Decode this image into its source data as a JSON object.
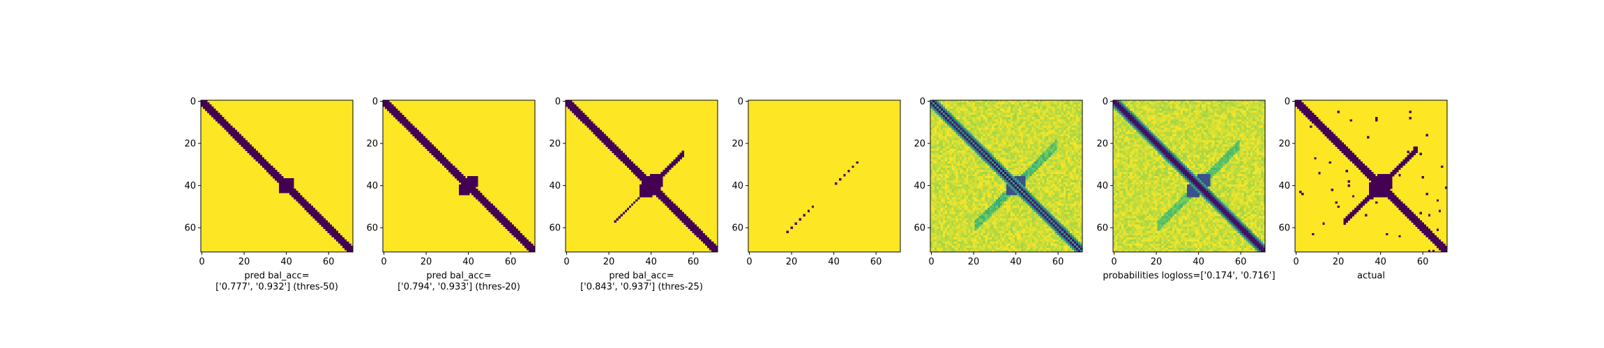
{
  "colors": {
    "low": "#440154",
    "high": "#fde725"
  },
  "chart_data": [
    {
      "type": "heatmap",
      "kind": "binary",
      "variant": "pred50",
      "xlabel": "pred bal_acc=\n['0.777', '0.932'] (thres-50)",
      "xlim": [
        0,
        72
      ],
      "ylim": [
        72,
        0
      ],
      "xticks": [
        0,
        20,
        40,
        60
      ],
      "yticks": [
        0,
        20,
        40,
        60
      ]
    },
    {
      "type": "heatmap",
      "kind": "binary",
      "variant": "pred20",
      "xlabel": "pred bal_acc=\n['0.794', '0.933'] (thres-20)",
      "xlim": [
        0,
        72
      ],
      "ylim": [
        72,
        0
      ],
      "xticks": [
        0,
        20,
        40,
        60
      ],
      "yticks": [
        0,
        20,
        40,
        60
      ]
    },
    {
      "type": "heatmap",
      "kind": "binary",
      "variant": "pred25",
      "xlabel": "pred bal_acc=\n['0.843', '0.937'] (thres-25)",
      "xlim": [
        0,
        72
      ],
      "ylim": [
        72,
        0
      ],
      "xticks": [
        0,
        20,
        40,
        60
      ],
      "yticks": [
        0,
        20,
        40,
        60
      ]
    },
    {
      "type": "heatmap",
      "kind": "binary",
      "variant": "sparse",
      "xlabel": "",
      "xlim": [
        0,
        72
      ],
      "ylim": [
        72,
        0
      ],
      "xticks": [
        0,
        20,
        40,
        60
      ],
      "yticks": [
        0,
        20,
        40,
        60
      ]
    },
    {
      "type": "heatmap",
      "kind": "continuous",
      "variant": "prob_thin",
      "xlabel": "",
      "xlim": [
        0,
        72
      ],
      "ylim": [
        72,
        0
      ],
      "xticks": [
        0,
        20,
        40,
        60
      ],
      "yticks": [
        0,
        20,
        40,
        60
      ]
    },
    {
      "type": "heatmap",
      "kind": "continuous",
      "variant": "prob",
      "xlabel": "probabilities logloss=['0.174', '0.716']",
      "xlim": [
        0,
        72
      ],
      "ylim": [
        72,
        0
      ],
      "xticks": [
        0,
        20,
        40,
        60
      ],
      "yticks": [
        0,
        20,
        40,
        60
      ]
    },
    {
      "type": "heatmap",
      "kind": "binary",
      "variant": "actual",
      "xlabel": "actual",
      "xlim": [
        0,
        72
      ],
      "ylim": [
        72,
        0
      ],
      "xticks": [
        0,
        20,
        40,
        60
      ],
      "yticks": [
        0,
        20,
        40,
        60
      ]
    }
  ]
}
